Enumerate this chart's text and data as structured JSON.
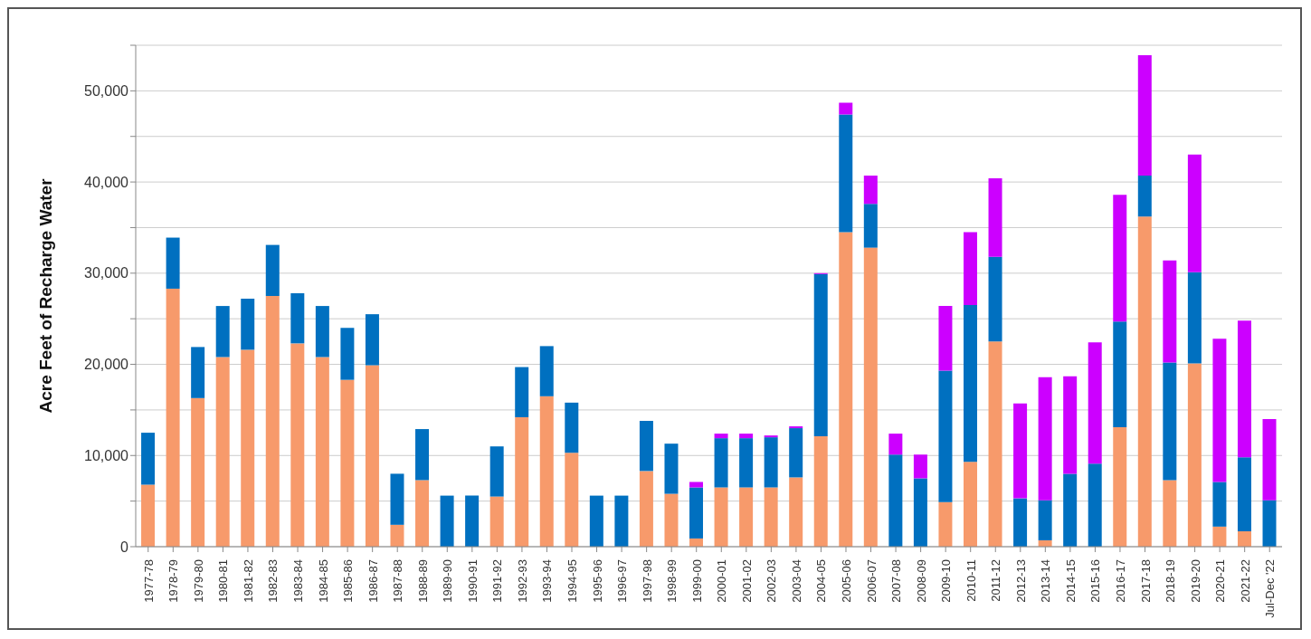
{
  "chart_data": {
    "type": "bar",
    "ylabel": "Acre Feet of Recharge Water",
    "stacked": true,
    "grid": "y",
    "legend": false,
    "categories": [
      "1977-78",
      "1978-79",
      "1979-80",
      "1980-81",
      "1981-82",
      "1982-83",
      "1983-84",
      "1984-85",
      "1985-86",
      "1986-87",
      "1987-88",
      "1988-89",
      "1989-90",
      "1990-91",
      "1991-92",
      "1992-93",
      "1993-94",
      "1994-95",
      "1995-96",
      "1996-97",
      "1997-98",
      "1998-99",
      "1999-00",
      "2000-01",
      "2001-02",
      "2002-03",
      "2003-04",
      "2004-05",
      "2005-06",
      "2006-07",
      "2007-08",
      "2008-09",
      "2009-10",
      "2010-11",
      "2011-12",
      "2012-13",
      "2013-14",
      "2014-15",
      "2015-16",
      "2016-17",
      "2017-18",
      "2018-19",
      "2019-20",
      "2020-21",
      "2021-22",
      "Jul-Dec '22"
    ],
    "series": [
      {
        "color": "#f79a6b",
        "values": [
          6800,
          28300,
          16300,
          20800,
          21600,
          27500,
          22300,
          20800,
          18300,
          19900,
          2400,
          7300,
          0,
          0,
          5500,
          14200,
          16500,
          10300,
          0,
          0,
          8300,
          5800,
          900,
          6500,
          6500,
          6500,
          7600,
          12100,
          34500,
          32800,
          0,
          0,
          4900,
          9300,
          22500,
          0,
          700,
          0,
          0,
          13100,
          36200,
          7300,
          20100,
          2200,
          1700,
          0
        ]
      },
      {
        "color": "#0070c0",
        "values": [
          5700,
          5600,
          5600,
          5600,
          5600,
          5600,
          5500,
          5600,
          5700,
          5600,
          5600,
          5600,
          5600,
          5600,
          5500,
          5500,
          5500,
          5500,
          5600,
          5600,
          5500,
          5500,
          5600,
          5400,
          5400,
          5500,
          5400,
          17800,
          12900,
          4800,
          10100,
          7500,
          14400,
          17200,
          9300,
          5300,
          4400,
          8000,
          9100,
          11600,
          4500,
          12900,
          10000,
          4900,
          8100,
          5100
        ]
      },
      {
        "color": "#cc00ff",
        "values": [
          0,
          0,
          0,
          0,
          0,
          0,
          0,
          0,
          0,
          0,
          0,
          0,
          0,
          0,
          0,
          0,
          0,
          0,
          0,
          0,
          0,
          0,
          600,
          500,
          500,
          200,
          200,
          100,
          1300,
          3100,
          2300,
          2600,
          7100,
          8000,
          8600,
          10400,
          13500,
          10700,
          13300,
          13900,
          13200,
          11200,
          12900,
          15700,
          15000,
          8900
        ]
      }
    ],
    "ylim": [
      0,
      55000
    ],
    "yticks": [
      0,
      {
        "value": 5000,
        "label": null
      },
      {
        "value": 10000,
        "label": "10,000"
      },
      {
        "value": 15000,
        "label": null
      },
      {
        "value": 20000,
        "label": "20,000"
      },
      {
        "value": 25000,
        "label": null
      },
      {
        "value": 30000,
        "label": "30,000"
      },
      {
        "value": 35000,
        "label": null
      },
      {
        "value": 40000,
        "label": "40,000"
      },
      {
        "value": 45000,
        "label": null
      },
      {
        "value": 50000,
        "label": "50,000"
      },
      {
        "value": 55000,
        "label": null
      }
    ]
  }
}
